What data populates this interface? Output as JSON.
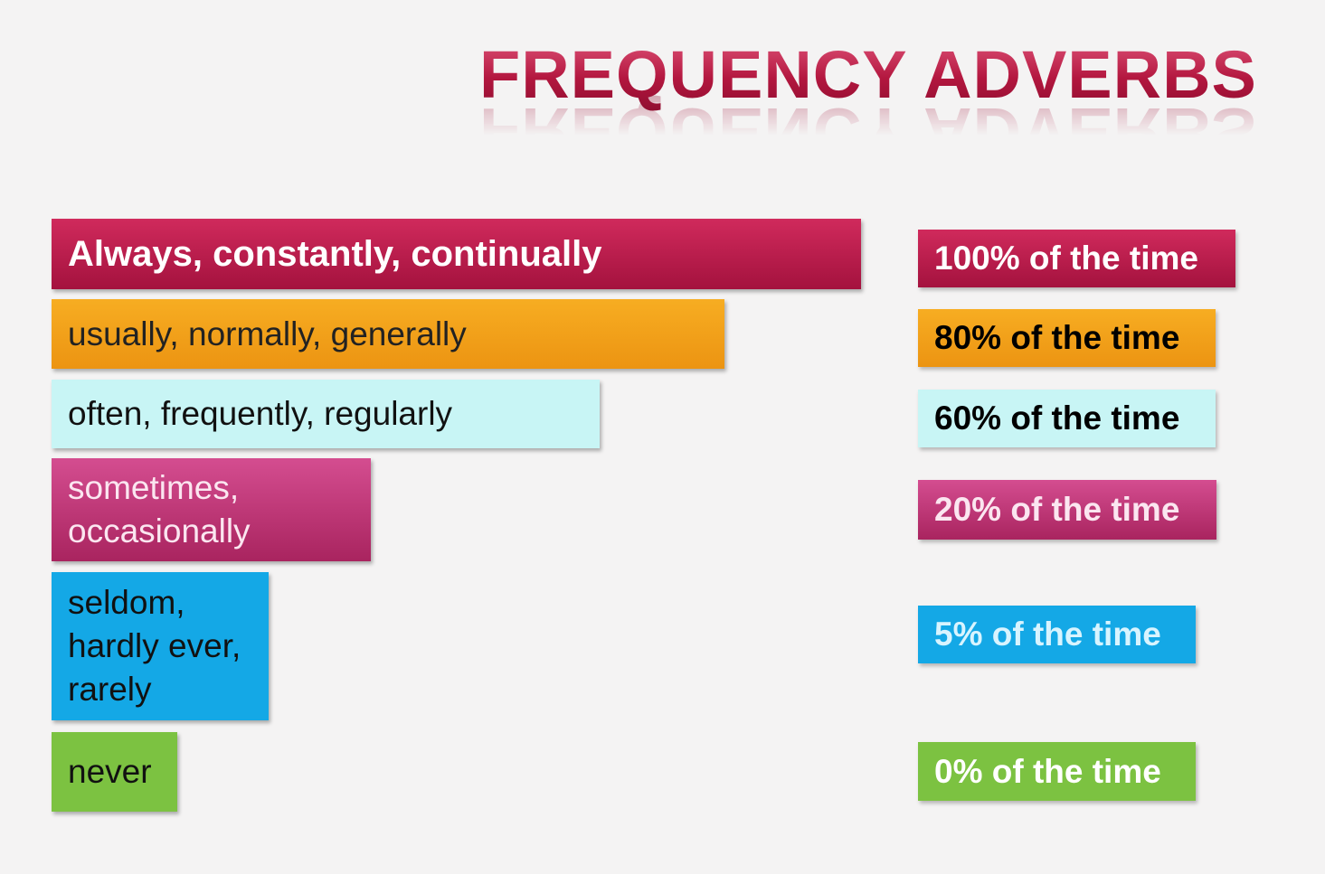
{
  "title": "FREQUENCY ADVERBS",
  "rows": [
    {
      "adverbs": [
        "Always, constantly, continually"
      ],
      "frequency": "100% of the time"
    },
    {
      "adverbs": [
        "usually, normally, generally"
      ],
      "frequency": "80% of the time"
    },
    {
      "adverbs": [
        "often, frequently, regularly"
      ],
      "frequency": "60% of the time"
    },
    {
      "adverbs": [
        "sometimes,",
        "occasionally"
      ],
      "frequency": "20% of the time"
    },
    {
      "adverbs": [
        "seldom,",
        "hardly ever,",
        "rarely"
      ],
      "frequency": "5% of the time"
    },
    {
      "adverbs": [
        "never"
      ],
      "frequency": "0% of the time"
    }
  ]
}
